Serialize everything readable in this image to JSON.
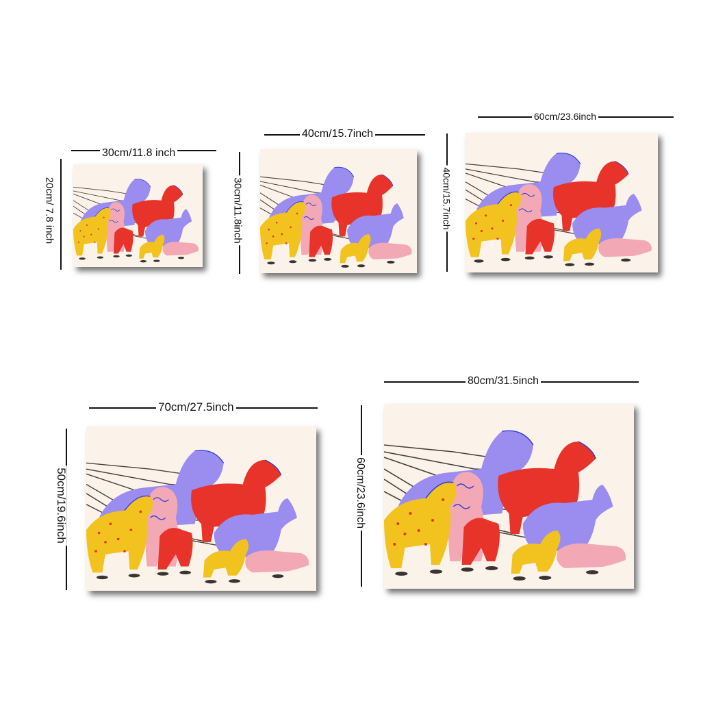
{
  "sizes": [
    {
      "width_label": "30cm/11.8 inch",
      "height_label": "20cm/ 7.8 inch"
    },
    {
      "width_label": "40cm/15.7inch",
      "height_label": "30cm/11.8inch"
    },
    {
      "width_label": "60cm/23.6inch",
      "height_label": "40cm/15.7inch"
    },
    {
      "width_label": "70cm/27.5inch",
      "height_label": "50cm/19.6inch"
    },
    {
      "width_label": "80cm/31.5inch",
      "height_label": "60cm/23.6inch"
    }
  ],
  "artwork": {
    "subject": "walking-dogs-illustration",
    "colors": {
      "background": "#fbf3ea",
      "purple": "#9b8cf0",
      "red": "#e8332b",
      "yellow": "#f2c21e",
      "pink": "#f3a9b5",
      "blue_ink": "#2b3bd6",
      "leash": "#4a3f3a"
    }
  }
}
